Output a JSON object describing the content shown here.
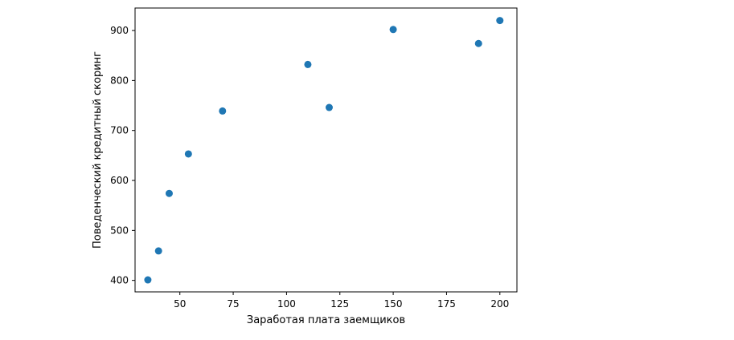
{
  "chart_data": {
    "type": "scatter",
    "title": "",
    "xlabel": "Заработая плата заемщиков",
    "ylabel": "Поведенческий кредитный скоринг",
    "xlim": [
      29,
      208
    ],
    "ylim": [
      377,
      945
    ],
    "xticks": [
      50,
      75,
      100,
      125,
      150,
      175,
      200
    ],
    "yticks": [
      400,
      500,
      600,
      700,
      800,
      900
    ],
    "grid": false,
    "legend": "none",
    "marker_color": "#1f77b4",
    "points": [
      {
        "x": 35,
        "y": 401
      },
      {
        "x": 40,
        "y": 459
      },
      {
        "x": 45,
        "y": 574
      },
      {
        "x": 54,
        "y": 653
      },
      {
        "x": 70,
        "y": 739
      },
      {
        "x": 110,
        "y": 832
      },
      {
        "x": 120,
        "y": 746
      },
      {
        "x": 150,
        "y": 902
      },
      {
        "x": 190,
        "y": 874
      },
      {
        "x": 200,
        "y": 920
      }
    ]
  }
}
